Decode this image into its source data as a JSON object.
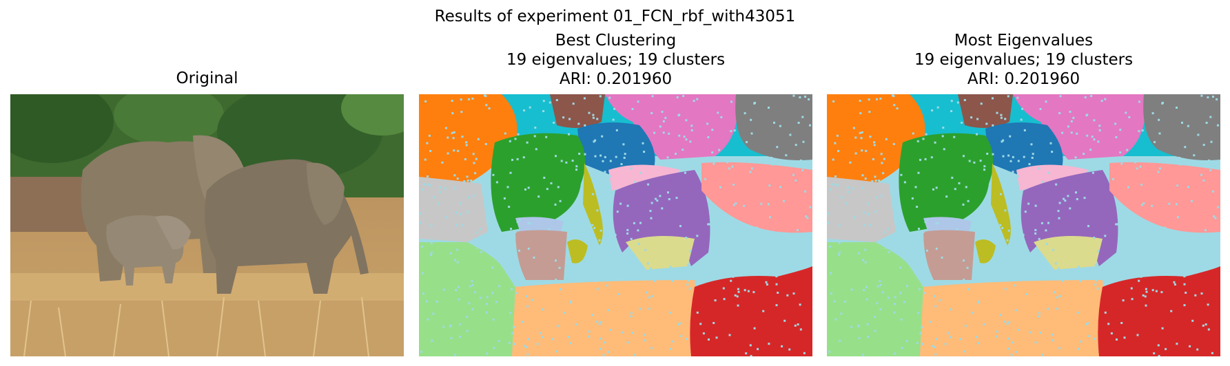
{
  "figure": {
    "suptitle": "Results of experiment 01_FCN_rbf_with43051"
  },
  "panels": [
    {
      "id": "original",
      "title_lines": [
        "Original"
      ]
    },
    {
      "id": "best",
      "title_lines": [
        "Best Clustering",
        "19 eigenvalues; 19 clusters",
        "ARI: 0.201960"
      ]
    },
    {
      "id": "most",
      "title_lines": [
        "Most Eigenvalues",
        "19 eigenvalues; 19 clusters",
        "ARI: 0.201960"
      ]
    }
  ],
  "palette": {
    "cyan": "#17becf",
    "orange": "#ff7f0e",
    "brown": "#8c564b",
    "pink": "#e377c2",
    "gray": "#7f7f7f",
    "green": "#2ca02c",
    "blue": "#1f77b4",
    "olive": "#bcbd22",
    "light_pink": "#f7b6d2",
    "purple": "#9467bd",
    "salmon": "#ff9896",
    "light_gray": "#c7c7c7",
    "light_blue": "#aec7e8",
    "light_cyan": "#9edae5",
    "light_green": "#98df8a",
    "rosy": "#c49c94",
    "light_olive": "#dbdb8d",
    "light_orange": "#ffbb78",
    "red": "#d62728"
  }
}
